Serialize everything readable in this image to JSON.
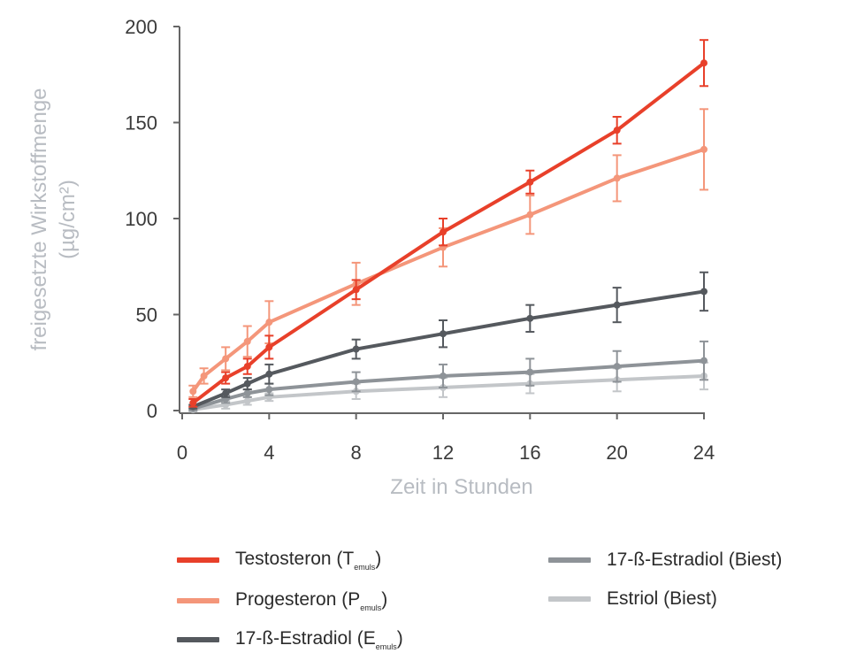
{
  "chart_data": {
    "type": "line",
    "title": "",
    "xlabel": "Zeit in Stunden",
    "ylabel_lines": [
      "freigesetzte Wirkstoffmenge",
      "(µg/cm²)"
    ],
    "xlim": [
      0,
      24
    ],
    "ylim": [
      0,
      200
    ],
    "x_ticks": [
      0,
      4,
      8,
      12,
      16,
      20,
      24
    ],
    "y_ticks": [
      0,
      50,
      100,
      150,
      200
    ],
    "grid": false,
    "legend_position": "bottom",
    "series": [
      {
        "name": "Testosteron (T",
        "name_sub": "emuls",
        "name_end": ")",
        "color": "#e8402a",
        "x": [
          0.5,
          2,
          3,
          4,
          8,
          12,
          16,
          20,
          24
        ],
        "y": [
          4,
          17,
          23,
          33,
          63,
          93,
          119,
          146,
          181
        ],
        "err": [
          2,
          3,
          4,
          6,
          5,
          7,
          6,
          7,
          12
        ]
      },
      {
        "name": "Progesteron (P",
        "name_sub": "emuls",
        "name_end": ")",
        "color": "#f4967a",
        "x": [
          0.5,
          1,
          2,
          3,
          4,
          8,
          12,
          16,
          20,
          24
        ],
        "y": [
          10,
          18,
          27,
          36,
          46,
          66,
          85,
          102,
          121,
          136
        ],
        "err": [
          3,
          4,
          6,
          8,
          11,
          11,
          10,
          10,
          12,
          21
        ]
      },
      {
        "name": "17-ß-Estradiol (E",
        "name_sub": "emuls",
        "name_end": ")",
        "color": "#55595e",
        "x": [
          0.5,
          2,
          3,
          4,
          8,
          12,
          16,
          20,
          24
        ],
        "y": [
          2,
          9,
          14,
          19,
          32,
          40,
          48,
          55,
          62
        ],
        "err": [
          1,
          2,
          3,
          5,
          5,
          7,
          7,
          9,
          10
        ]
      },
      {
        "name": "17-ß-Estradiol (Biest)",
        "color": "#8e9398",
        "x": [
          0.5,
          2,
          3,
          4,
          8,
          12,
          16,
          20,
          24
        ],
        "y": [
          1,
          6,
          9,
          11,
          15,
          18,
          20,
          23,
          26
        ],
        "err": [
          1,
          2,
          2,
          3,
          5,
          6,
          7,
          8,
          10
        ]
      },
      {
        "name": "Estriol (Biest)",
        "color": "#c3c6c9",
        "x": [
          0.5,
          2,
          3,
          4,
          8,
          12,
          16,
          20,
          24
        ],
        "y": [
          0.5,
          3,
          5,
          7,
          10,
          12,
          14,
          16,
          18
        ],
        "err": [
          1,
          2,
          2,
          2,
          4,
          5,
          5,
          6,
          7
        ]
      }
    ]
  }
}
